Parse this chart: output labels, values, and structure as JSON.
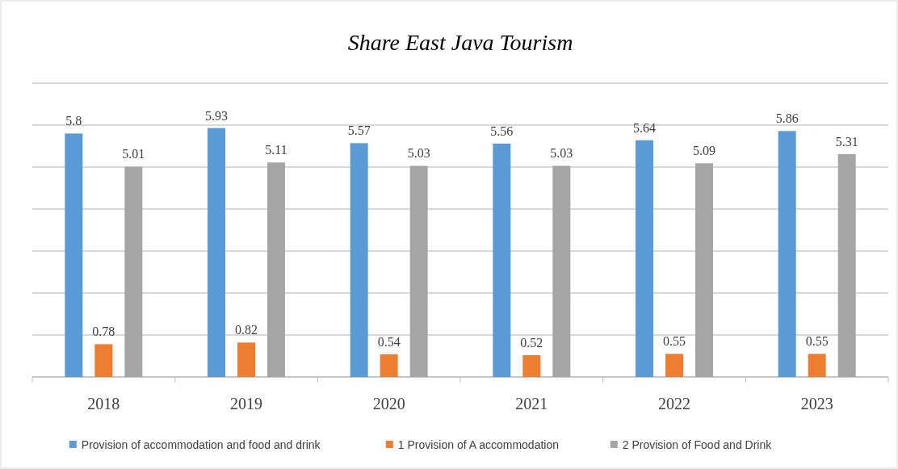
{
  "chart_data": {
    "type": "bar",
    "title": "Share East Java Tourism",
    "categories": [
      "2018",
      "2019",
      "2020",
      "2021",
      "2022",
      "2023"
    ],
    "series": [
      {
        "name": "Provision of accommodation and food and drink",
        "color": "#5b9bd5",
        "values": [
          5.8,
          5.93,
          5.57,
          5.56,
          5.64,
          5.86
        ]
      },
      {
        "name": "1 Provision of A accommodation",
        "color": "#ed7d31",
        "values": [
          0.78,
          0.82,
          0.54,
          0.52,
          0.55,
          0.55
        ]
      },
      {
        "name": "2 Provision of Food and Drink",
        "color": "#a5a5a5",
        "values": [
          5.01,
          5.11,
          5.03,
          5.03,
          5.09,
          5.31
        ]
      }
    ],
    "ylim": [
      0,
      7
    ],
    "yticks": [
      {
        "value": 0,
        "label": null
      },
      {
        "value": 1,
        "label": null
      },
      {
        "value": 2,
        "label": null
      },
      {
        "value": 3,
        "label": null
      },
      {
        "value": 4,
        "label": null
      },
      {
        "value": 5,
        "label": null
      },
      {
        "value": 6,
        "label": null
      },
      {
        "value": 7,
        "label": null
      }
    ],
    "tick_labels": "x",
    "grid": "y",
    "legend": "bottom",
    "data_labels": true
  }
}
